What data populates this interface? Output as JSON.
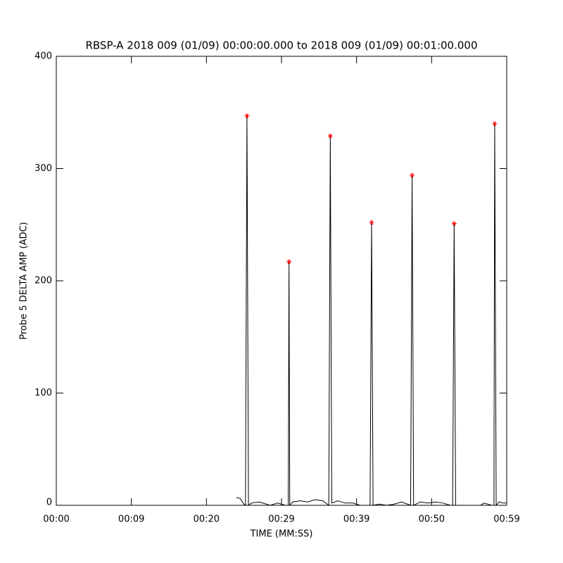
{
  "chart_data": {
    "type": "line",
    "title": "RBSP-A 2018 009 (01/09) 00:00:00.000 to 2018 009 (01/09) 00:01:00.000",
    "x_label": "TIME (MM:SS)",
    "y_label": "Probe 5 DELTA AMP (ADC)",
    "xlim": [
      0,
      60
    ],
    "xticks": [
      {
        "value": 0,
        "label": "00:00"
      },
      {
        "value": 10,
        "label": "00:09"
      },
      {
        "value": 20,
        "label": "00:20"
      },
      {
        "value": 30,
        "label": "00:29"
      },
      {
        "value": 40,
        "label": "00:39"
      },
      {
        "value": 50,
        "label": "00:50"
      },
      {
        "value": 60,
        "label": "00:59"
      }
    ],
    "ylim": [
      0,
      400
    ],
    "yticks": [
      0,
      100,
      200,
      300,
      400
    ],
    "grid": false,
    "series": [
      {
        "color": "#000000",
        "marker": "none",
        "line": true,
        "x": [
          24.0,
          24.5,
          25.0,
          25.2,
          25.4,
          25.6,
          26.0,
          27.0,
          28.0,
          28.5,
          29.5,
          30.5,
          30.9,
          31.0,
          31.1,
          31.5,
          32.5,
          33.5,
          34.5,
          35.5,
          36.3,
          36.5,
          36.7,
          37.5,
          38.5,
          39.5,
          40.5,
          41.8,
          42.0,
          42.2,
          43.0,
          44.0,
          45.0,
          46.0,
          47.2,
          47.4,
          47.6,
          48.5,
          49.5,
          50.5,
          51.5,
          52.5,
          52.8,
          53.0,
          53.2,
          54.0,
          55.0,
          56.5,
          57.0,
          58.0,
          58.3,
          58.4,
          58.6,
          59.0,
          59.5,
          60.0
        ],
        "values": [
          7,
          6,
          1,
          0,
          347,
          0,
          2,
          3,
          1,
          0,
          2,
          0,
          0,
          217,
          0,
          3,
          4,
          3,
          5,
          4,
          0,
          329,
          2,
          4,
          2,
          2,
          0,
          0,
          252,
          0,
          1,
          0,
          1,
          3,
          0,
          294,
          0,
          3,
          2,
          3,
          2,
          0,
          0,
          251,
          0,
          0,
          0,
          0,
          2,
          0,
          0,
          340,
          0,
          3,
          2,
          2
        ]
      },
      {
        "color": "#ff0000",
        "marker": "asterisk",
        "line": false,
        "x": [
          25.4,
          31.0,
          36.5,
          42.0,
          47.4,
          53.0,
          58.4
        ],
        "values": [
          347,
          217,
          329,
          252,
          294,
          251,
          340
        ]
      }
    ]
  }
}
